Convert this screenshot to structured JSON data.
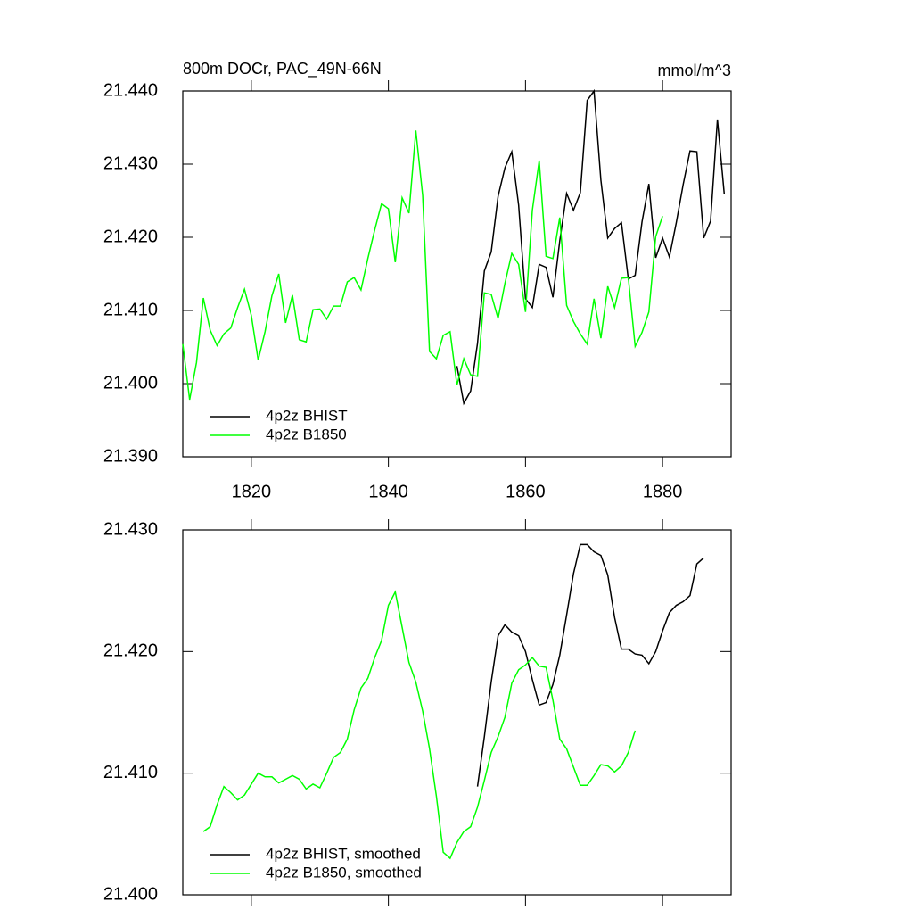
{
  "chart_data": [
    {
      "type": "line",
      "title": "800m DOCr, PAC_49N-66N",
      "units": "mmol/m^3",
      "xlim": [
        1810,
        1890
      ],
      "xticks": [
        1820,
        1840,
        1860,
        1880
      ],
      "xtick_labels": true,
      "ylim": [
        21.39,
        21.44
      ],
      "yticks": [
        {
          "value": 21.39,
          "label": "21.390"
        },
        {
          "value": 21.4,
          "label": "21.400"
        },
        {
          "value": 21.41,
          "label": "21.410"
        },
        {
          "value": 21.42,
          "label": "21.420"
        },
        {
          "value": 21.43,
          "label": "21.430"
        },
        {
          "value": 21.44,
          "label": "21.440"
        }
      ],
      "legend": "lower left",
      "series": [
        {
          "name": "4p2z BHIST",
          "color": "#000000",
          "x": [
            1850,
            1851,
            1852,
            1853,
            1854,
            1855,
            1856,
            1857,
            1858,
            1859,
            1860,
            1861,
            1862,
            1863,
            1864,
            1865,
            1866,
            1867,
            1868,
            1869,
            1870,
            1871,
            1872,
            1873,
            1874,
            1875,
            1876,
            1877,
            1878,
            1879,
            1880,
            1881,
            1882,
            1883,
            1884,
            1885,
            1886,
            1887,
            1888,
            1889
          ],
          "values": [
            21.4024,
            21.3973,
            21.399,
            21.4055,
            21.4154,
            21.418,
            21.4256,
            21.4295,
            21.4317,
            21.4244,
            21.4116,
            21.4104,
            21.4163,
            21.4159,
            21.4118,
            21.4195,
            21.426,
            21.4237,
            21.4261,
            21.4387,
            21.44,
            21.4278,
            21.4199,
            21.4212,
            21.422,
            21.4143,
            21.4148,
            21.4221,
            21.4273,
            21.4172,
            21.4199,
            21.4173,
            21.422,
            21.4272,
            21.4318,
            21.4317,
            21.4199,
            21.4222,
            21.4361,
            21.4259
          ]
        },
        {
          "name": "4p2z B1850",
          "color": "#00ff00",
          "x": [
            1810,
            1811,
            1812,
            1813,
            1814,
            1815,
            1816,
            1817,
            1818,
            1819,
            1820,
            1821,
            1822,
            1823,
            1824,
            1825,
            1826,
            1827,
            1828,
            1829,
            1830,
            1831,
            1832,
            1833,
            1834,
            1835,
            1836,
            1837,
            1838,
            1839,
            1840,
            1841,
            1842,
            1843,
            1844,
            1845,
            1846,
            1847,
            1848,
            1849,
            1850,
            1851,
            1852,
            1853,
            1854,
            1855,
            1856,
            1857,
            1858,
            1859,
            1860,
            1861,
            1862,
            1863,
            1864,
            1865,
            1866,
            1867,
            1868,
            1869,
            1870,
            1871,
            1872,
            1873,
            1874,
            1875,
            1876,
            1877,
            1878,
            1879,
            1880
          ],
          "values": [
            21.4054,
            21.3978,
            21.4029,
            21.4117,
            21.4073,
            21.4052,
            21.4068,
            21.4076,
            21.4104,
            21.4129,
            21.4093,
            21.4032,
            21.4071,
            21.412,
            21.415,
            21.4083,
            21.4121,
            21.406,
            21.4057,
            21.4101,
            21.4102,
            21.4088,
            21.4106,
            21.4106,
            21.4139,
            21.4145,
            21.4128,
            21.4171,
            21.421,
            21.4246,
            21.4239,
            21.4166,
            21.4254,
            21.4233,
            21.4346,
            21.4257,
            21.4044,
            21.4034,
            21.4066,
            21.4071,
            21.3998,
            21.4034,
            21.4012,
            21.401,
            21.4124,
            21.4122,
            21.4089,
            21.4137,
            21.4178,
            21.4163,
            21.4098,
            21.4237,
            21.4305,
            21.4174,
            21.4171,
            21.4227,
            21.4107,
            21.4085,
            21.4068,
            21.4054,
            21.4116,
            21.4062,
            21.4133,
            21.4104,
            21.4144,
            21.4145,
            21.4051,
            21.407,
            21.4098,
            21.4201,
            21.4229
          ]
        }
      ]
    },
    {
      "type": "line",
      "xlim": [
        1810,
        1890
      ],
      "xticks": [
        1820,
        1840,
        1860,
        1880
      ],
      "xtick_labels": false,
      "ylim": [
        21.4,
        21.43
      ],
      "yticks": [
        {
          "value": 21.4,
          "label": "21.400"
        },
        {
          "value": 21.41,
          "label": "21.410"
        },
        {
          "value": 21.42,
          "label": "21.420"
        },
        {
          "value": 21.43,
          "label": "21.430"
        }
      ],
      "legend": "lower left",
      "series": [
        {
          "name": "4p2z BHIST, smoothed",
          "color": "#000000",
          "x": [
            1853,
            1854,
            1855,
            1856,
            1857,
            1858,
            1859,
            1860,
            1861,
            1862,
            1863,
            1864,
            1865,
            1866,
            1867,
            1868,
            1869,
            1870,
            1871,
            1872,
            1873,
            1874,
            1875,
            1876,
            1877,
            1878,
            1879,
            1880,
            1881,
            1882,
            1883,
            1884,
            1885,
            1886
          ],
          "values": [
            21.4089,
            21.413,
            21.4175,
            21.4213,
            21.4222,
            21.4216,
            21.4213,
            21.42,
            21.4177,
            21.4156,
            21.4158,
            21.4173,
            21.4197,
            21.423,
            21.4264,
            21.4288,
            21.4288,
            21.4282,
            21.4279,
            21.4263,
            21.4228,
            21.4202,
            21.4202,
            21.4198,
            21.4197,
            21.419,
            21.42,
            21.4217,
            21.4232,
            21.4238,
            21.4241,
            21.4246,
            21.4272,
            21.4277
          ]
        },
        {
          "name": "4p2z B1850, smoothed",
          "color": "#00ff00",
          "x": [
            1813,
            1814,
            1815,
            1816,
            1817,
            1818,
            1819,
            1820,
            1821,
            1822,
            1823,
            1824,
            1825,
            1826,
            1827,
            1828,
            1829,
            1830,
            1831,
            1832,
            1833,
            1834,
            1835,
            1836,
            1837,
            1838,
            1839,
            1840,
            1841,
            1842,
            1843,
            1844,
            1845,
            1846,
            1847,
            1848,
            1849,
            1850,
            1851,
            1852,
            1853,
            1854,
            1855,
            1856,
            1857,
            1858,
            1859,
            1860,
            1861,
            1862,
            1863,
            1864,
            1865,
            1866,
            1867,
            1868,
            1869,
            1870,
            1871,
            1872,
            1873,
            1874,
            1875,
            1876
          ],
          "values": [
            21.4052,
            21.4056,
            21.4074,
            21.4089,
            21.4084,
            21.4078,
            21.4082,
            21.4091,
            21.41,
            21.4097,
            21.4097,
            21.4092,
            21.4095,
            21.4098,
            21.4095,
            21.4087,
            21.4091,
            21.4088,
            21.41,
            21.4113,
            21.4117,
            21.4128,
            21.4152,
            21.417,
            21.4178,
            21.4195,
            21.4209,
            21.4238,
            21.4249,
            21.422,
            21.4191,
            21.4175,
            21.4151,
            21.412,
            21.4081,
            21.4035,
            21.403,
            21.4043,
            21.4052,
            21.4056,
            21.4072,
            21.4094,
            21.4117,
            21.413,
            21.4146,
            21.4174,
            21.4185,
            21.4189,
            21.4195,
            21.4188,
            21.4187,
            21.416,
            21.4128,
            21.412,
            21.4105,
            21.409,
            21.409,
            21.4098,
            21.4107,
            21.4106,
            21.4101,
            21.4106,
            21.4117,
            21.4135
          ]
        }
      ]
    }
  ]
}
